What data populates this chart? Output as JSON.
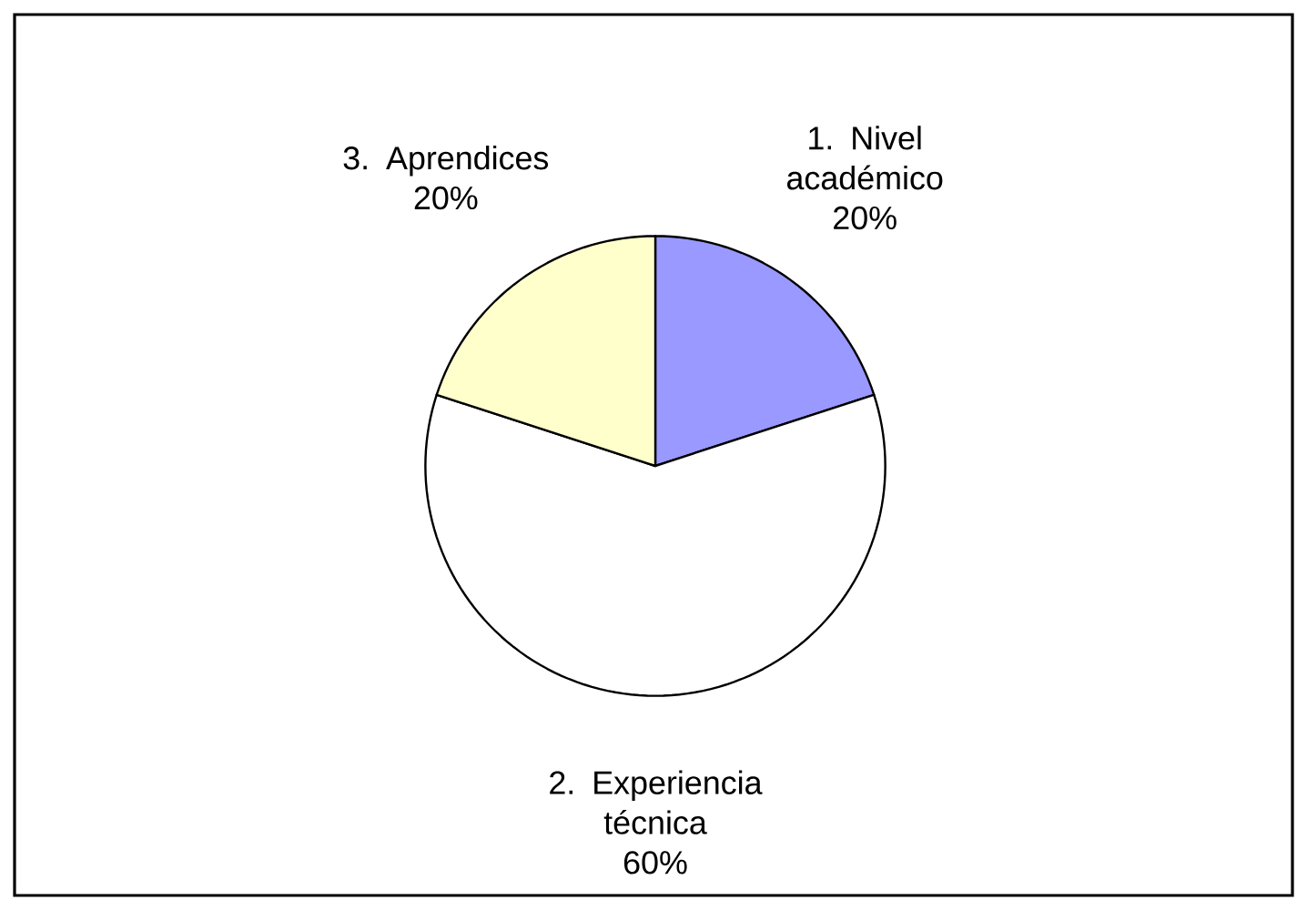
{
  "chart_data": {
    "type": "pie",
    "categories": [
      "1. Nivel académico",
      "2. Experiencia técnica",
      "3. Aprendices"
    ],
    "values": [
      20,
      60,
      20
    ],
    "value_labels": [
      "20%",
      "60%",
      "20%"
    ],
    "colors": [
      "#9999ff",
      "#ffffff",
      "#ffffcc"
    ]
  }
}
